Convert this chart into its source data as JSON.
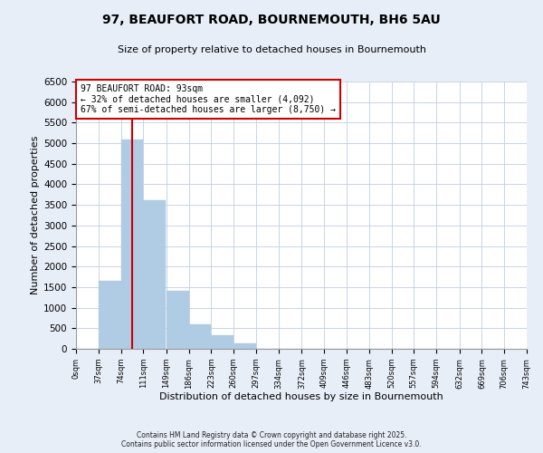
{
  "title": "97, BEAUFORT ROAD, BOURNEMOUTH, BH6 5AU",
  "subtitle": "Size of property relative to detached houses in Bournemouth",
  "xlabel": "Distribution of detached houses by size in Bournemouth",
  "ylabel": "Number of detached properties",
  "bar_counts": [
    0,
    1650,
    5100,
    3620,
    1420,
    600,
    320,
    140,
    0,
    0,
    0,
    0,
    0,
    0,
    0,
    0,
    0,
    0,
    0
  ],
  "bin_edges": [
    0,
    37,
    74,
    111,
    149,
    186,
    223,
    260,
    297,
    334,
    372,
    409,
    446,
    483,
    520,
    557,
    594,
    632,
    669,
    706
  ],
  "tick_labels": [
    "0sqm",
    "37sqm",
    "74sqm",
    "111sqm",
    "149sqm",
    "186sqm",
    "223sqm",
    "260sqm",
    "297sqm",
    "334sqm",
    "372sqm",
    "409sqm",
    "446sqm",
    "483sqm",
    "520sqm",
    "557sqm",
    "594sqm",
    "632sqm",
    "669sqm",
    "706sqm",
    "743sqm"
  ],
  "bar_color": "#b0cce4",
  "property_line_x": 93,
  "property_line_color": "#cc0000",
  "annotation_box_color": "#cc0000",
  "annotation_text_line1": "97 BEAUFORT ROAD: 93sqm",
  "annotation_text_line2": "← 32% of detached houses are smaller (4,092)",
  "annotation_text_line3": "67% of semi-detached houses are larger (8,750) →",
  "ylim_max": 6500,
  "yticks": [
    0,
    500,
    1000,
    1500,
    2000,
    2500,
    3000,
    3500,
    4000,
    4500,
    5000,
    5500,
    6000,
    6500
  ],
  "footer_line1": "Contains HM Land Registry data © Crown copyright and database right 2025.",
  "footer_line2": "Contains public sector information licensed under the Open Government Licence v3.0.",
  "background_color": "#e8eef8",
  "plot_bg_color": "#ffffff",
  "grid_color": "#c0cfe0"
}
